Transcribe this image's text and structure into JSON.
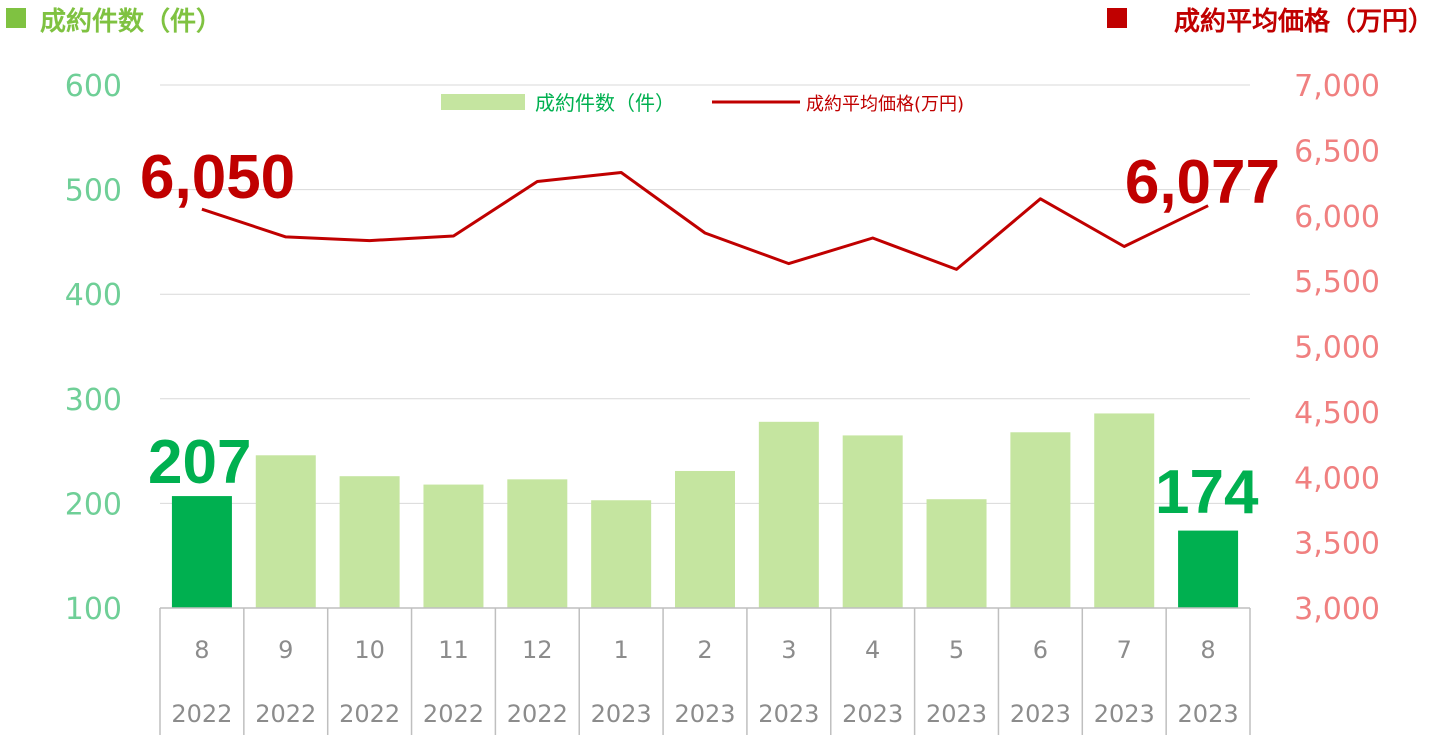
{
  "header": {
    "left_title": "成約件数（件）",
    "right_title": "成約平均価格（万円）"
  },
  "legend": {
    "bar_label": "成約件数（件）",
    "line_label": "成約平均価格(万円)"
  },
  "callouts": {
    "first_price": "6,050",
    "last_price": "6,077",
    "first_count": "207",
    "last_count": "174"
  },
  "colors": {
    "bar_normal": "#c5e5a0",
    "bar_highlight": "#00b050",
    "line": "#c00000",
    "left_axis_text": "#6fcf97",
    "right_axis_text": "#f08080",
    "left_title": "#7fc241",
    "right_title": "#c00000",
    "left_marker": "#7fc241",
    "right_marker": "#c00000",
    "count_callout": "#00b050",
    "price_callout": "#c00000",
    "grid": "#d9d9d9",
    "category_border": "#bfbfbf"
  },
  "chart_data": {
    "type": "bar",
    "categories": [
      {
        "month": "8",
        "year": "2022"
      },
      {
        "month": "9",
        "year": "2022"
      },
      {
        "month": "10",
        "year": "2022"
      },
      {
        "month": "11",
        "year": "2022"
      },
      {
        "month": "12",
        "year": "2022"
      },
      {
        "month": "1",
        "year": "2023"
      },
      {
        "month": "2",
        "year": "2023"
      },
      {
        "month": "3",
        "year": "2023"
      },
      {
        "month": "4",
        "year": "2023"
      },
      {
        "month": "5",
        "year": "2023"
      },
      {
        "month": "6",
        "year": "2023"
      },
      {
        "month": "7",
        "year": "2023"
      },
      {
        "month": "8",
        "year": "2023"
      }
    ],
    "series": [
      {
        "name": "成約件数（件）",
        "type": "bar",
        "axis": "left",
        "values": [
          207,
          246,
          226,
          218,
          223,
          203,
          231,
          278,
          265,
          204,
          268,
          286,
          174
        ],
        "highlight": [
          true,
          false,
          false,
          false,
          false,
          false,
          false,
          false,
          false,
          false,
          false,
          false,
          true
        ]
      },
      {
        "name": "成約平均価格(万円)",
        "type": "line",
        "axis": "right",
        "values": [
          6050,
          5838,
          5810,
          5845,
          6262,
          6331,
          5868,
          5634,
          5830,
          5590,
          6130,
          5765,
          6077
        ]
      }
    ],
    "left_axis": {
      "ylim": [
        100,
        600
      ],
      "ticks": [
        100,
        200,
        300,
        400,
        500,
        600
      ],
      "tick_labels": [
        "100",
        "200",
        "300",
        "400",
        "500",
        "600"
      ]
    },
    "right_axis": {
      "ylim": [
        3000,
        7000
      ],
      "ticks": [
        3000,
        3500,
        4000,
        4500,
        5000,
        5500,
        6000,
        6500,
        7000
      ],
      "tick_labels": [
        "3,000",
        "3,500",
        "4,000",
        "4,500",
        "5,000",
        "5,500",
        "6,000",
        "6,500",
        "7,000"
      ]
    },
    "grid": true,
    "legend_position": "top-center"
  }
}
